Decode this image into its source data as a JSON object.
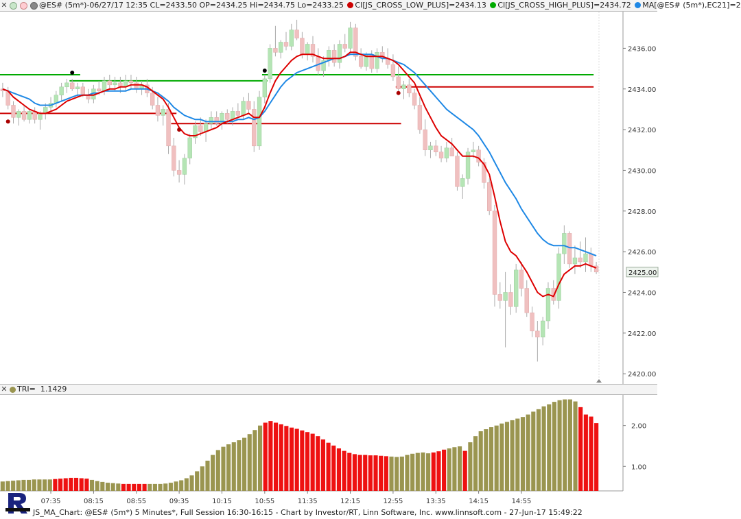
{
  "header": {
    "close_glyph": "✕",
    "title": "@ES# (5m*)-06/27/17 12:35 CL=2433.50 OP=2434.25 Hi=2434.75 Lo=2433.25",
    "ind1": "CI[JS_CROSS_LOW_PLUS]=2434.13",
    "ind2": "CI[JS_CROSS_HIGH_PLUS]=2434.72",
    "ind3": "MA[@ES# (5m*),EC21]=2",
    "ind1_color": "#cc0000",
    "ind2_color": "#00aa00",
    "ind3_color": "#1e88e5"
  },
  "lower_panel": {
    "label": "TRI=",
    "value": "1.1429"
  },
  "price_tag": "2425.00",
  "footer": "JS_MA_Chart: @ES# (5m*) 5 Minutes*, Full Session 16:30-16:15 - Chart by Investor/RT, Linn Software, Inc. www.linnsoft.com - 27-Jun-17 15:49:22",
  "colors": {
    "up_candle": "#b5e5b5",
    "down_candle": "#f0c0c0",
    "ema_blue": "#1e88e5",
    "ema_red": "#dd0000",
    "level_green": "#00aa00",
    "level_red": "#cc0000",
    "bar_olive": "#9a9550",
    "bar_red": "#ee1111"
  },
  "chart_data": [
    {
      "type": "candlestick",
      "title": "@ES# (5m*)",
      "y_ticks": [
        "2420.00",
        "2422.00",
        "2424.00",
        "2426.00",
        "2428.00",
        "2430.00",
        "2432.00",
        "2434.00",
        "2436.00"
      ],
      "ylim": [
        2419.5,
        2437.8
      ],
      "x_ticks": [
        "07:35",
        "08:15",
        "08:55",
        "09:35",
        "10:15",
        "10:55",
        "11:35",
        "12:15",
        "12:55",
        "13:35",
        "14:15",
        "14:55"
      ],
      "candles": [
        [
          2434.0,
          2434.3,
          2433.6,
          2433.9
        ],
        [
          2433.9,
          2434.1,
          2433.0,
          2433.2
        ],
        [
          2433.2,
          2433.4,
          2432.3,
          2432.6
        ],
        [
          2432.6,
          2433.0,
          2432.2,
          2432.9
        ],
        [
          2432.9,
          2433.2,
          2432.4,
          2432.5
        ],
        [
          2432.5,
          2433.0,
          2432.3,
          2432.9
        ],
        [
          2432.9,
          2433.1,
          2432.3,
          2432.5
        ],
        [
          2432.5,
          2432.9,
          2432.0,
          2432.8
        ],
        [
          2432.8,
          2433.3,
          2432.5,
          2433.1
        ],
        [
          2433.1,
          2433.6,
          2432.9,
          2433.3
        ],
        [
          2433.3,
          2433.9,
          2433.1,
          2433.7
        ],
        [
          2433.7,
          2434.3,
          2433.4,
          2434.1
        ],
        [
          2434.1,
          2434.5,
          2433.8,
          2434.3
        ],
        [
          2434.3,
          2434.5,
          2433.9,
          2434.0
        ],
        [
          2434.0,
          2434.3,
          2433.6,
          2434.1
        ],
        [
          2434.1,
          2434.3,
          2433.6,
          2433.7
        ],
        [
          2433.7,
          2434.0,
          2433.3,
          2433.5
        ],
        [
          2433.5,
          2434.2,
          2433.3,
          2434.0
        ],
        [
          2434.0,
          2434.4,
          2433.7,
          2433.9
        ],
        [
          2433.9,
          2434.6,
          2433.7,
          2434.4
        ],
        [
          2434.4,
          2434.7,
          2434.0,
          2434.2
        ],
        [
          2434.2,
          2434.6,
          2433.9,
          2434.3
        ],
        [
          2434.3,
          2434.6,
          2433.8,
          2434.1
        ],
        [
          2434.1,
          2434.7,
          2433.9,
          2434.4
        ],
        [
          2434.4,
          2434.7,
          2434.0,
          2434.3
        ],
        [
          2434.3,
          2434.6,
          2433.8,
          2434.0
        ],
        [
          2434.0,
          2434.4,
          2433.7,
          2434.2
        ],
        [
          2434.2,
          2434.5,
          2433.6,
          2433.8
        ],
        [
          2433.8,
          2434.1,
          2433.0,
          2433.2
        ],
        [
          2433.2,
          2433.6,
          2432.4,
          2432.7
        ],
        [
          2432.7,
          2433.2,
          2432.2,
          2433.0
        ],
        [
          2433.0,
          2433.3,
          2430.8,
          2431.2
        ],
        [
          2431.2,
          2431.6,
          2429.7,
          2430.0
        ],
        [
          2430.0,
          2430.5,
          2429.4,
          2429.8
        ],
        [
          2429.8,
          2430.8,
          2429.3,
          2430.6
        ],
        [
          2430.6,
          2431.8,
          2430.3,
          2431.6
        ],
        [
          2431.6,
          2432.4,
          2431.3,
          2432.2
        ],
        [
          2432.2,
          2432.6,
          2431.7,
          2431.9
        ],
        [
          2431.9,
          2432.5,
          2431.4,
          2432.3
        ],
        [
          2432.3,
          2432.9,
          2432.0,
          2432.6
        ],
        [
          2432.6,
          2432.9,
          2432.2,
          2432.3
        ],
        [
          2432.3,
          2432.9,
          2432.0,
          2432.8
        ],
        [
          2432.8,
          2433.0,
          2432.3,
          2432.5
        ],
        [
          2432.5,
          2433.1,
          2432.2,
          2432.9
        ],
        [
          2432.9,
          2433.3,
          2432.6,
          2432.7
        ],
        [
          2432.7,
          2433.6,
          2432.5,
          2433.4
        ],
        [
          2433.4,
          2433.8,
          2432.8,
          2433.0
        ],
        [
          2433.0,
          2433.4,
          2430.9,
          2431.2
        ],
        [
          2431.2,
          2433.9,
          2431.0,
          2433.6
        ],
        [
          2433.6,
          2434.7,
          2433.3,
          2434.5
        ],
        [
          2434.5,
          2436.2,
          2434.3,
          2436.0
        ],
        [
          2436.0,
          2437.1,
          2435.6,
          2435.8
        ],
        [
          2435.8,
          2436.4,
          2435.5,
          2436.3
        ],
        [
          2436.3,
          2436.8,
          2435.9,
          2436.1
        ],
        [
          2436.1,
          2437.2,
          2435.9,
          2436.9
        ],
        [
          2436.9,
          2437.4,
          2436.4,
          2436.5
        ],
        [
          2436.5,
          2436.8,
          2435.5,
          2435.7
        ],
        [
          2435.7,
          2436.3,
          2435.4,
          2436.2
        ],
        [
          2436.2,
          2436.6,
          2435.3,
          2435.6
        ],
        [
          2435.6,
          2436.0,
          2434.7,
          2434.9
        ],
        [
          2434.9,
          2435.6,
          2434.6,
          2435.4
        ],
        [
          2435.4,
          2436.1,
          2435.1,
          2435.9
        ],
        [
          2435.9,
          2436.2,
          2435.1,
          2435.3
        ],
        [
          2435.3,
          2436.4,
          2435.0,
          2436.2
        ],
        [
          2436.2,
          2436.7,
          2435.8,
          2436.0
        ],
        [
          2436.0,
          2437.3,
          2435.8,
          2437.0
        ],
        [
          2437.0,
          2437.2,
          2435.4,
          2435.6
        ],
        [
          2435.6,
          2436.0,
          2435.0,
          2435.1
        ],
        [
          2435.1,
          2435.8,
          2434.9,
          2435.7
        ],
        [
          2435.7,
          2435.9,
          2434.8,
          2435.0
        ],
        [
          2435.0,
          2436.0,
          2434.8,
          2435.8
        ],
        [
          2435.8,
          2436.1,
          2435.3,
          2435.5
        ],
        [
          2435.5,
          2436.0,
          2435.0,
          2435.2
        ],
        [
          2435.2,
          2435.7,
          2434.4,
          2434.6
        ],
        [
          2434.6,
          2435.1,
          2433.7,
          2434.0
        ],
        [
          2434.0,
          2434.4,
          2433.5,
          2434.2
        ],
        [
          2434.2,
          2434.5,
          2433.6,
          2433.8
        ],
        [
          2433.8,
          2434.0,
          2433.0,
          2433.2
        ],
        [
          2433.2,
          2433.6,
          2431.8,
          2432.0
        ],
        [
          2432.0,
          2432.5,
          2430.7,
          2431.0
        ],
        [
          2431.0,
          2431.4,
          2430.6,
          2431.2
        ],
        [
          2431.2,
          2431.5,
          2430.7,
          2430.9
        ],
        [
          2430.9,
          2431.2,
          2430.4,
          2430.6
        ],
        [
          2430.6,
          2431.4,
          2430.4,
          2431.1
        ],
        [
          2431.1,
          2431.6,
          2430.7,
          2430.7
        ],
        [
          2430.7,
          2430.9,
          2429.0,
          2429.2
        ],
        [
          2429.2,
          2429.8,
          2428.6,
          2429.6
        ],
        [
          2429.6,
          2431.1,
          2429.3,
          2430.9
        ],
        [
          2430.9,
          2431.4,
          2430.6,
          2431.0
        ],
        [
          2431.0,
          2431.2,
          2430.2,
          2430.4
        ],
        [
          2430.4,
          2430.6,
          2429.1,
          2429.4
        ],
        [
          2429.4,
          2429.6,
          2427.8,
          2428.0
        ],
        [
          2428.0,
          2428.3,
          2423.3,
          2423.9
        ],
        [
          2423.9,
          2424.5,
          2423.2,
          2423.6
        ],
        [
          2423.6,
          2425.0,
          2421.3,
          2424.0
        ],
        [
          2424.0,
          2424.4,
          2422.9,
          2423.3
        ],
        [
          2423.3,
          2425.4,
          2423.0,
          2425.1
        ],
        [
          2425.1,
          2425.5,
          2423.8,
          2424.2
        ],
        [
          2424.2,
          2424.6,
          2422.8,
          2423.0
        ],
        [
          2423.0,
          2423.3,
          2421.8,
          2422.1
        ],
        [
          2422.1,
          2422.6,
          2420.6,
          2421.8
        ],
        [
          2421.8,
          2422.8,
          2421.4,
          2422.6
        ],
        [
          2422.6,
          2424.5,
          2422.2,
          2424.2
        ],
        [
          2424.2,
          2424.6,
          2423.4,
          2423.6
        ],
        [
          2423.6,
          2426.2,
          2423.2,
          2425.9
        ],
        [
          2425.9,
          2427.3,
          2425.4,
          2426.9
        ],
        [
          2426.9,
          2427.0,
          2425.2,
          2425.4
        ],
        [
          2425.4,
          2426.3,
          2424.9,
          2425.7
        ],
        [
          2425.7,
          2426.5,
          2425.2,
          2425.5
        ],
        [
          2425.5,
          2426.7,
          2425.0,
          2425.9
        ],
        [
          2425.9,
          2426.2,
          2425.0,
          2425.3
        ],
        [
          2425.3,
          2425.5,
          2424.9,
          2425.0
        ]
      ],
      "ema_red": [
        2434.0,
        2433.9,
        2433.6,
        2433.4,
        2433.2,
        2433.0,
        2432.9,
        2432.8,
        2432.8,
        2432.9,
        2433.0,
        2433.2,
        2433.4,
        2433.5,
        2433.6,
        2433.7,
        2433.7,
        2433.7,
        2433.8,
        2433.9,
        2434.0,
        2434.0,
        2434.1,
        2434.1,
        2434.2,
        2434.2,
        2434.2,
        2434.1,
        2433.9,
        2433.7,
        2433.5,
        2433.1,
        2432.6,
        2432.1,
        2431.8,
        2431.7,
        2431.7,
        2431.8,
        2431.9,
        2432.0,
        2432.1,
        2432.3,
        2432.4,
        2432.5,
        2432.6,
        2432.7,
        2432.8,
        2432.6,
        2432.6,
        2433.1,
        2433.8,
        2434.4,
        2434.8,
        2435.1,
        2435.4,
        2435.6,
        2435.7,
        2435.7,
        2435.7,
        2435.6,
        2435.5,
        2435.5,
        2435.5,
        2435.5,
        2435.6,
        2435.8,
        2435.8,
        2435.7,
        2435.6,
        2435.6,
        2435.6,
        2435.6,
        2435.5,
        2435.4,
        2435.2,
        2434.9,
        2434.6,
        2434.3,
        2433.7,
        2433.1,
        2432.6,
        2432.1,
        2431.7,
        2431.5,
        2431.3,
        2431.0,
        2430.7,
        2430.7,
        2430.7,
        2430.6,
        2430.3,
        2429.8,
        2428.7,
        2427.5,
        2426.5,
        2426.0,
        2425.8,
        2425.4,
        2425.0,
        2424.5,
        2424.0,
        2423.8,
        2423.9,
        2423.8,
        2424.4,
        2424.9,
        2425.1,
        2425.3,
        2425.3,
        2425.4,
        2425.3,
        2425.2
      ],
      "ema_blue": [
        2434.0,
        2433.9,
        2433.8,
        2433.7,
        2433.6,
        2433.5,
        2433.3,
        2433.2,
        2433.2,
        2433.2,
        2433.3,
        2433.4,
        2433.5,
        2433.6,
        2433.7,
        2433.7,
        2433.7,
        2433.8,
        2433.8,
        2433.9,
        2433.9,
        2433.9,
        2433.9,
        2433.9,
        2434.0,
        2434.0,
        2434.0,
        2434.0,
        2433.9,
        2433.8,
        2433.6,
        2433.4,
        2433.1,
        2432.9,
        2432.7,
        2432.6,
        2432.5,
        2432.5,
        2432.4,
        2432.4,
        2432.4,
        2432.4,
        2432.4,
        2432.4,
        2432.5,
        2432.5,
        2432.6,
        2432.5,
        2432.6,
        2432.9,
        2433.3,
        2433.7,
        2434.1,
        2434.4,
        2434.6,
        2434.8,
        2434.9,
        2435.0,
        2435.1,
        2435.2,
        2435.3,
        2435.4,
        2435.5,
        2435.5,
        2435.6,
        2435.7,
        2435.7,
        2435.7,
        2435.7,
        2435.7,
        2435.6,
        2435.5,
        2435.5,
        2435.4,
        2435.3,
        2435.2,
        2435.0,
        2434.8,
        2434.5,
        2434.2,
        2433.9,
        2433.6,
        2433.3,
        2433.0,
        2432.8,
        2432.6,
        2432.4,
        2432.2,
        2432.0,
        2431.7,
        2431.3,
        2430.9,
        2430.4,
        2429.9,
        2429.4,
        2429.0,
        2428.6,
        2428.1,
        2427.7,
        2427.3,
        2426.9,
        2426.6,
        2426.4,
        2426.3,
        2426.3,
        2426.3,
        2426.2,
        2426.2,
        2426.1,
        2426.0,
        2425.9,
        2425.8
      ],
      "levels": [
        {
          "kind": "green",
          "from": 0,
          "to": 14,
          "value": 2434.7
        },
        {
          "kind": "green",
          "from": 13,
          "to": 49,
          "value": 2434.4
        },
        {
          "kind": "green",
          "from": 49,
          "to": 110,
          "value": 2434.7
        },
        {
          "kind": "red",
          "from": 0,
          "to": 32,
          "value": 2432.8
        },
        {
          "kind": "red",
          "from": 32,
          "to": 74,
          "value": 2432.3
        },
        {
          "kind": "red",
          "from": 74,
          "to": 110,
          "value": 2434.1
        }
      ],
      "markers": [
        {
          "i": 13,
          "value": 2434.8,
          "color": "black"
        },
        {
          "i": 1,
          "value": 2432.4,
          "color": "red"
        },
        {
          "i": 33,
          "value": 2432.0,
          "color": "red"
        },
        {
          "i": 49,
          "value": 2434.9,
          "color": "black"
        },
        {
          "i": 74,
          "value": 2433.8,
          "color": "red"
        }
      ]
    },
    {
      "type": "bar",
      "title": "TRI",
      "y_ticks": [
        "1.00",
        "2.00"
      ],
      "ylim": [
        0.4,
        2.75
      ],
      "values": [
        0.63,
        0.64,
        0.65,
        0.66,
        0.67,
        0.67,
        0.68,
        0.68,
        0.68,
        0.68,
        0.69,
        0.7,
        0.71,
        0.72,
        0.72,
        0.71,
        0.7,
        0.67,
        0.64,
        0.62,
        0.6,
        0.59,
        0.58,
        0.57,
        0.57,
        0.57,
        0.57,
        0.57,
        0.57,
        0.57,
        0.57,
        0.58,
        0.6,
        0.63,
        0.66,
        0.71,
        0.78,
        0.88,
        1.0,
        1.14,
        1.28,
        1.4,
        1.48,
        1.54,
        1.59,
        1.64,
        1.7,
        1.79,
        1.89,
        2.0,
        2.07,
        2.11,
        2.07,
        2.03,
        1.99,
        1.95,
        1.92,
        1.88,
        1.84,
        1.8,
        1.74,
        1.66,
        1.58,
        1.51,
        1.44,
        1.38,
        1.33,
        1.3,
        1.28,
        1.28,
        1.27,
        1.27,
        1.26,
        1.25,
        1.24,
        1.23,
        1.24,
        1.28,
        1.31,
        1.33,
        1.34,
        1.32,
        1.34,
        1.37,
        1.41,
        1.44,
        1.47,
        1.49,
        1.38,
        1.59,
        1.74,
        1.86,
        1.91,
        1.96,
        2.0,
        2.05,
        2.09,
        2.13,
        2.17,
        2.21,
        2.27,
        2.34,
        2.4,
        2.47,
        2.52,
        2.58,
        2.62,
        2.64,
        2.64,
        2.59,
        2.45,
        2.27,
        2.22,
        2.06
      ],
      "red_ranges": [
        [
          10,
          16
        ],
        [
          23,
          27
        ],
        [
          50,
          73
        ],
        [
          82,
          84
        ],
        [
          88,
          88
        ],
        [
          110,
          113
        ]
      ]
    }
  ]
}
